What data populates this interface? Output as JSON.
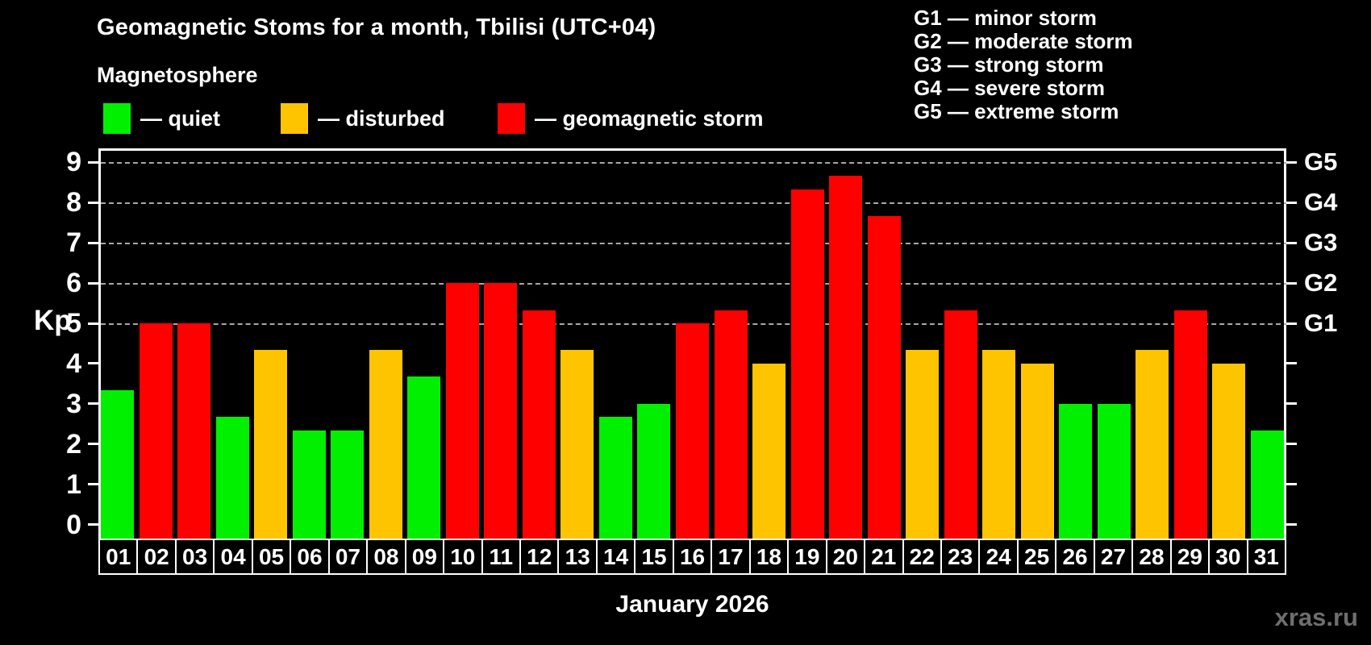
{
  "header": {
    "title": "Geomagnetic Stoms for a month, Tbilisi (UTC+04)",
    "subtitle": "Magnetosphere",
    "legend": [
      {
        "name": "quiet",
        "label": "— quiet",
        "color": "#00f000"
      },
      {
        "name": "disturbed",
        "label": "— disturbed",
        "color": "#ffc400"
      },
      {
        "name": "storm",
        "label": "— geomagnetic storm",
        "color": "#ff0000"
      }
    ],
    "g_legend": [
      "G1 — minor storm",
      "G2 — moderate storm",
      "G3 — strong storm",
      "G4 — severe storm",
      "G5 — extreme storm"
    ]
  },
  "chart_data": {
    "type": "bar",
    "title": "Geomagnetic Stoms for a month, Tbilisi (UTC+04)",
    "xlabel": "January 2026",
    "ylabel": "Kp",
    "ylim": [
      0,
      9
    ],
    "y_ticks": [
      0,
      1,
      2,
      3,
      4,
      5,
      6,
      7,
      8,
      9
    ],
    "gridlines_at": [
      5,
      6,
      7,
      8,
      9
    ],
    "grid": "dashed horizontal at G-levels only",
    "legend_position": "top-left",
    "right_axis_labels": [
      {
        "value": 5,
        "label": "G1"
      },
      {
        "value": 6,
        "label": "G2"
      },
      {
        "value": 7,
        "label": "G3"
      },
      {
        "value": 8,
        "label": "G4"
      },
      {
        "value": 9,
        "label": "G5"
      }
    ],
    "categories": [
      "01",
      "02",
      "03",
      "04",
      "05",
      "06",
      "07",
      "08",
      "09",
      "10",
      "11",
      "12",
      "13",
      "14",
      "15",
      "16",
      "17",
      "18",
      "19",
      "20",
      "21",
      "22",
      "23",
      "24",
      "25",
      "26",
      "27",
      "28",
      "29",
      "30",
      "31"
    ],
    "values": [
      3.33,
      5,
      5,
      2.67,
      4.33,
      2.33,
      2.33,
      4.33,
      3.67,
      6,
      6,
      5.33,
      4.33,
      2.67,
      3,
      5,
      5.33,
      4,
      8.33,
      8.67,
      7.67,
      4.33,
      5.33,
      4.33,
      4,
      3,
      3,
      4.33,
      5.33,
      4,
      2.33
    ],
    "statuses": [
      "quiet",
      "storm",
      "storm",
      "quiet",
      "disturbed",
      "quiet",
      "quiet",
      "disturbed",
      "quiet",
      "storm",
      "storm",
      "storm",
      "disturbed",
      "quiet",
      "quiet",
      "storm",
      "storm",
      "disturbed",
      "storm",
      "storm",
      "storm",
      "disturbed",
      "storm",
      "disturbed",
      "disturbed",
      "quiet",
      "quiet",
      "disturbed",
      "storm",
      "disturbed",
      "quiet"
    ],
    "colors": {
      "quiet": "#00f000",
      "disturbed": "#ffc400",
      "storm": "#ff0000"
    }
  },
  "palette": {
    "background": "#000000",
    "axis": "#ffffff",
    "gridline": "#a8a8a8",
    "watermark_text": "#6e6e6e"
  },
  "footer": {
    "caption": "January 2026",
    "watermark": "xras.ru"
  }
}
